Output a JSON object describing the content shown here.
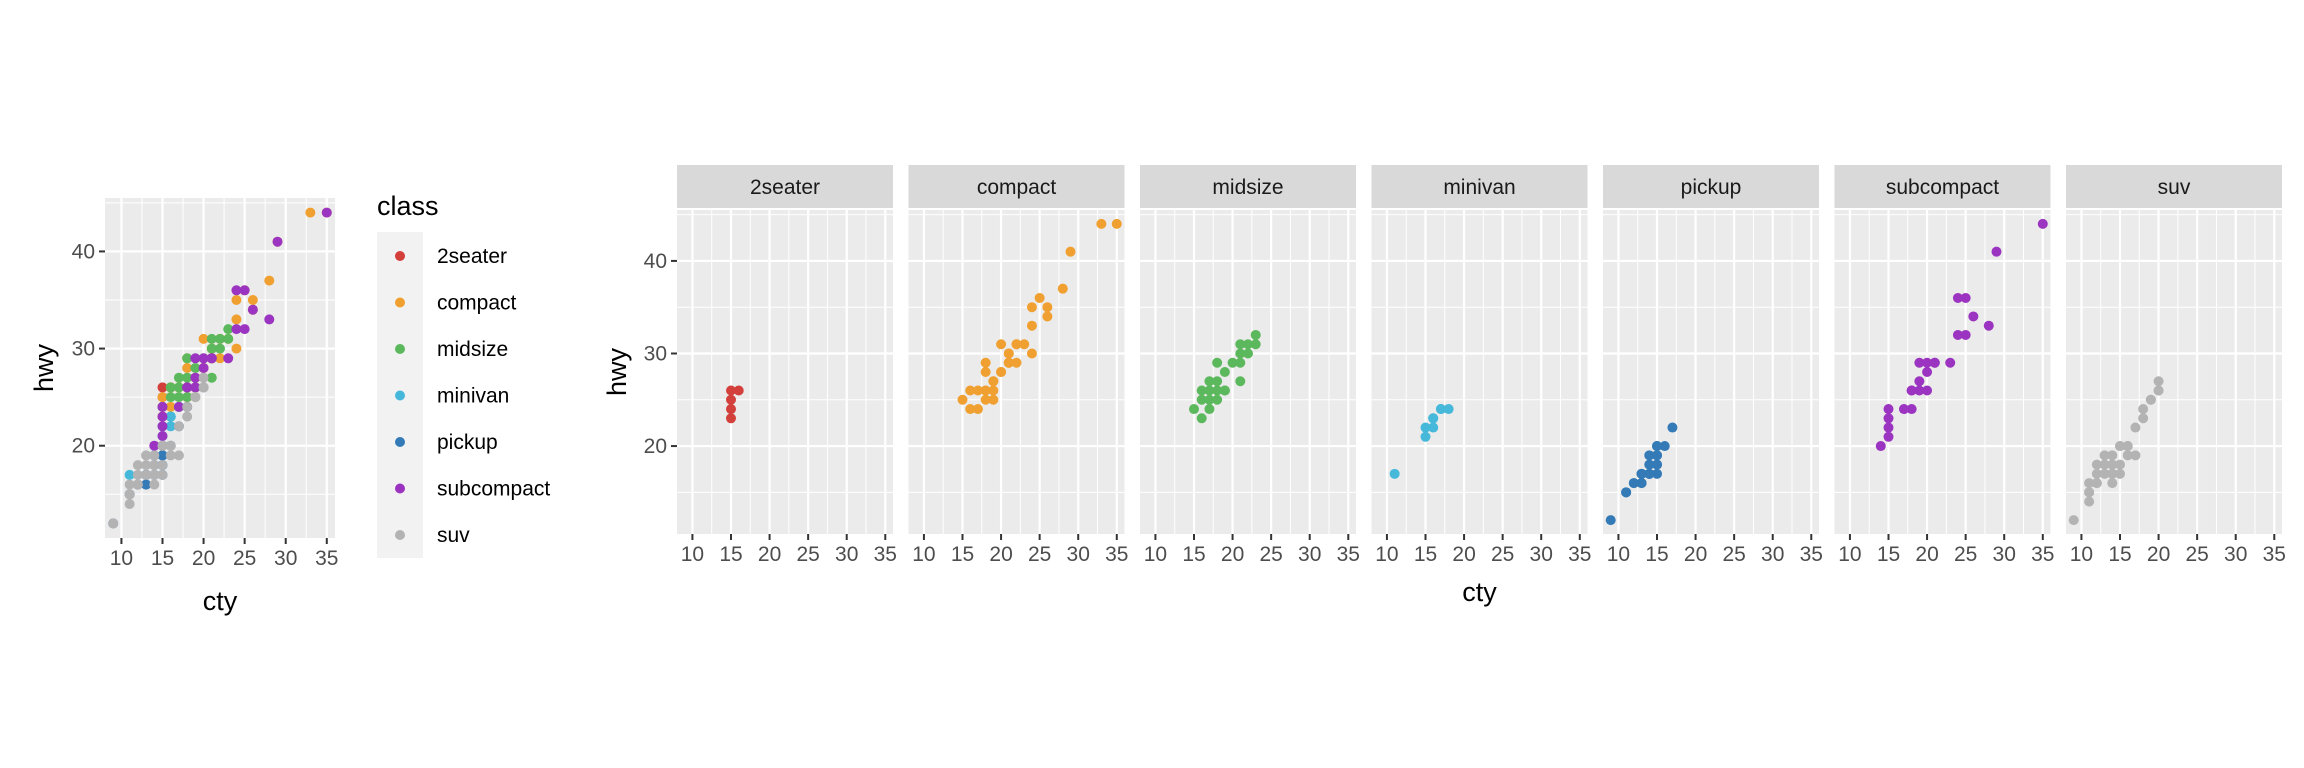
{
  "colors": {
    "2seater": "#D33F3A",
    "compact": "#F0A030",
    "midsize": "#5CB85C",
    "minivan": "#46B8DA",
    "pickup": "#337AB7",
    "subcompact": "#9B34C0",
    "suv": "#B3B3B3"
  },
  "legend": {
    "title": "class",
    "items": [
      "2seater",
      "compact",
      "midsize",
      "minivan",
      "pickup",
      "subcompact",
      "suv"
    ]
  },
  "chart_data": [
    {
      "type": "scatter",
      "xlabel": "cty",
      "ylabel": "hwy",
      "xlim": [
        8,
        36
      ],
      "ylim": [
        10.5,
        45.5
      ],
      "xticks": [
        10,
        15,
        20,
        25,
        30,
        35
      ],
      "yticks": [
        20,
        30,
        40
      ],
      "grid": true,
      "legend_position": "right",
      "series": [
        {
          "name": "2seater",
          "points": [
            [
              15,
              23
            ],
            [
              16,
              26
            ],
            [
              15,
              25
            ],
            [
              15,
              24
            ],
            [
              15,
              26
            ]
          ]
        },
        {
          "name": "compact",
          "points": [
            [
              18,
              29
            ],
            [
              21,
              29
            ],
            [
              20,
              31
            ],
            [
              21,
              30
            ],
            [
              16,
              26
            ],
            [
              18,
              25
            ],
            [
              18,
              28
            ],
            [
              19,
              27
            ],
            [
              22,
              29
            ],
            [
              18,
              26
            ],
            [
              21,
              29
            ],
            [
              20,
              28
            ],
            [
              19,
              26
            ],
            [
              15,
              25
            ],
            [
              17,
              24
            ],
            [
              19,
              27
            ],
            [
              21,
              30
            ],
            [
              22,
              31
            ],
            [
              21,
              29
            ],
            [
              18,
              26
            ],
            [
              24,
              33
            ],
            [
              28,
              37
            ],
            [
              24,
              35
            ],
            [
              26,
              35
            ],
            [
              33,
              44
            ],
            [
              35,
              44
            ],
            [
              29,
              41
            ],
            [
              22,
              31
            ],
            [
              20,
              28
            ],
            [
              19,
              25
            ],
            [
              24,
              30
            ],
            [
              26,
              34
            ],
            [
              25,
              36
            ],
            [
              23,
              31
            ],
            [
              17,
              26
            ],
            [
              16,
              24
            ]
          ]
        },
        {
          "name": "midsize",
          "points": [
            [
              18,
              26
            ],
            [
              19,
              26
            ],
            [
              17,
              25
            ],
            [
              18,
              27
            ],
            [
              19,
              28
            ],
            [
              18,
              25
            ],
            [
              16,
              25
            ],
            [
              17,
              27
            ],
            [
              21,
              29
            ],
            [
              21,
              31
            ],
            [
              17,
              24
            ],
            [
              18,
              29
            ],
            [
              20,
              29
            ],
            [
              19,
              26
            ],
            [
              21,
              30
            ],
            [
              22,
              31
            ],
            [
              23,
              32
            ],
            [
              17,
              26
            ],
            [
              21,
              27
            ],
            [
              22,
              30
            ],
            [
              23,
              31
            ],
            [
              16,
              23
            ],
            [
              15,
              24
            ],
            [
              16,
              26
            ]
          ]
        },
        {
          "name": "minivan",
          "points": [
            [
              16,
              23
            ],
            [
              18,
              24
            ],
            [
              17,
              24
            ],
            [
              16,
              22
            ],
            [
              15,
              21
            ],
            [
              15,
              22
            ],
            [
              11,
              17
            ],
            [
              17,
              24
            ],
            [
              16,
              23
            ]
          ]
        },
        {
          "name": "pickup",
          "points": [
            [
              15,
              20
            ],
            [
              14,
              17
            ],
            [
              13,
              17
            ],
            [
              15,
              19
            ],
            [
              14,
              19
            ],
            [
              11,
              15
            ],
            [
              14,
              17
            ],
            [
              13,
              17
            ],
            [
              12,
              16
            ],
            [
              13,
              16
            ],
            [
              16,
              20
            ],
            [
              15,
              19
            ],
            [
              14,
              18
            ],
            [
              15,
              18
            ],
            [
              17,
              22
            ],
            [
              15,
              17
            ],
            [
              15,
              20
            ],
            [
              14,
              17
            ],
            [
              13,
              16
            ],
            [
              9,
              12
            ],
            [
              13,
              17
            ],
            [
              11,
              15
            ],
            [
              12,
              16
            ],
            [
              15,
              18
            ]
          ]
        },
        {
          "name": "subcompact",
          "points": [
            [
              15,
              23
            ],
            [
              15,
              24
            ],
            [
              14,
              20
            ],
            [
              15,
              22
            ],
            [
              18,
              26
            ],
            [
              19,
              26
            ],
            [
              20,
              29
            ],
            [
              19,
              29
            ],
            [
              20,
              28
            ],
            [
              21,
              29
            ],
            [
              23,
              29
            ],
            [
              25,
              36
            ],
            [
              24,
              36
            ],
            [
              28,
              33
            ],
            [
              26,
              34
            ],
            [
              29,
              41
            ],
            [
              35,
              44
            ],
            [
              19,
              27
            ],
            [
              18,
              24
            ],
            [
              17,
              24
            ],
            [
              20,
              26
            ],
            [
              25,
              32
            ],
            [
              24,
              32
            ],
            [
              18,
              26
            ],
            [
              21,
              29
            ],
            [
              15,
              21
            ]
          ]
        },
        {
          "name": "suv",
          "points": [
            [
              14,
              17
            ],
            [
              11,
              15
            ],
            [
              14,
              17
            ],
            [
              14,
              19
            ],
            [
              13,
              19
            ],
            [
              12,
              18
            ],
            [
              11,
              14
            ],
            [
              15,
              20
            ],
            [
              19,
              25
            ],
            [
              18,
              24
            ],
            [
              20,
              27
            ],
            [
              20,
              26
            ],
            [
              15,
              20
            ],
            [
              16,
              20
            ],
            [
              12,
              17
            ],
            [
              11,
              16
            ],
            [
              13,
              18
            ],
            [
              9,
              12
            ],
            [
              12,
              16
            ],
            [
              14,
              18
            ],
            [
              16,
              19
            ],
            [
              17,
              22
            ],
            [
              15,
              17
            ],
            [
              18,
              23
            ],
            [
              19,
              25
            ],
            [
              20,
              26
            ],
            [
              14,
              17
            ],
            [
              12,
              16
            ],
            [
              11,
              15
            ],
            [
              13,
              17
            ],
            [
              14,
              16
            ],
            [
              17,
              19
            ],
            [
              15,
              18
            ],
            [
              16,
              20
            ]
          ]
        }
      ]
    },
    {
      "type": "scatter",
      "facet_by": "class",
      "facets": [
        "2seater",
        "compact",
        "midsize",
        "minivan",
        "pickup",
        "subcompact",
        "suv"
      ],
      "xlabel": "cty",
      "ylabel": "hwy",
      "xlim": [
        8,
        36
      ],
      "ylim": [
        10.5,
        45.5
      ],
      "xticks": [
        10,
        15,
        20,
        25,
        30,
        35
      ],
      "yticks": [
        20,
        30,
        40
      ],
      "grid": true
    }
  ]
}
